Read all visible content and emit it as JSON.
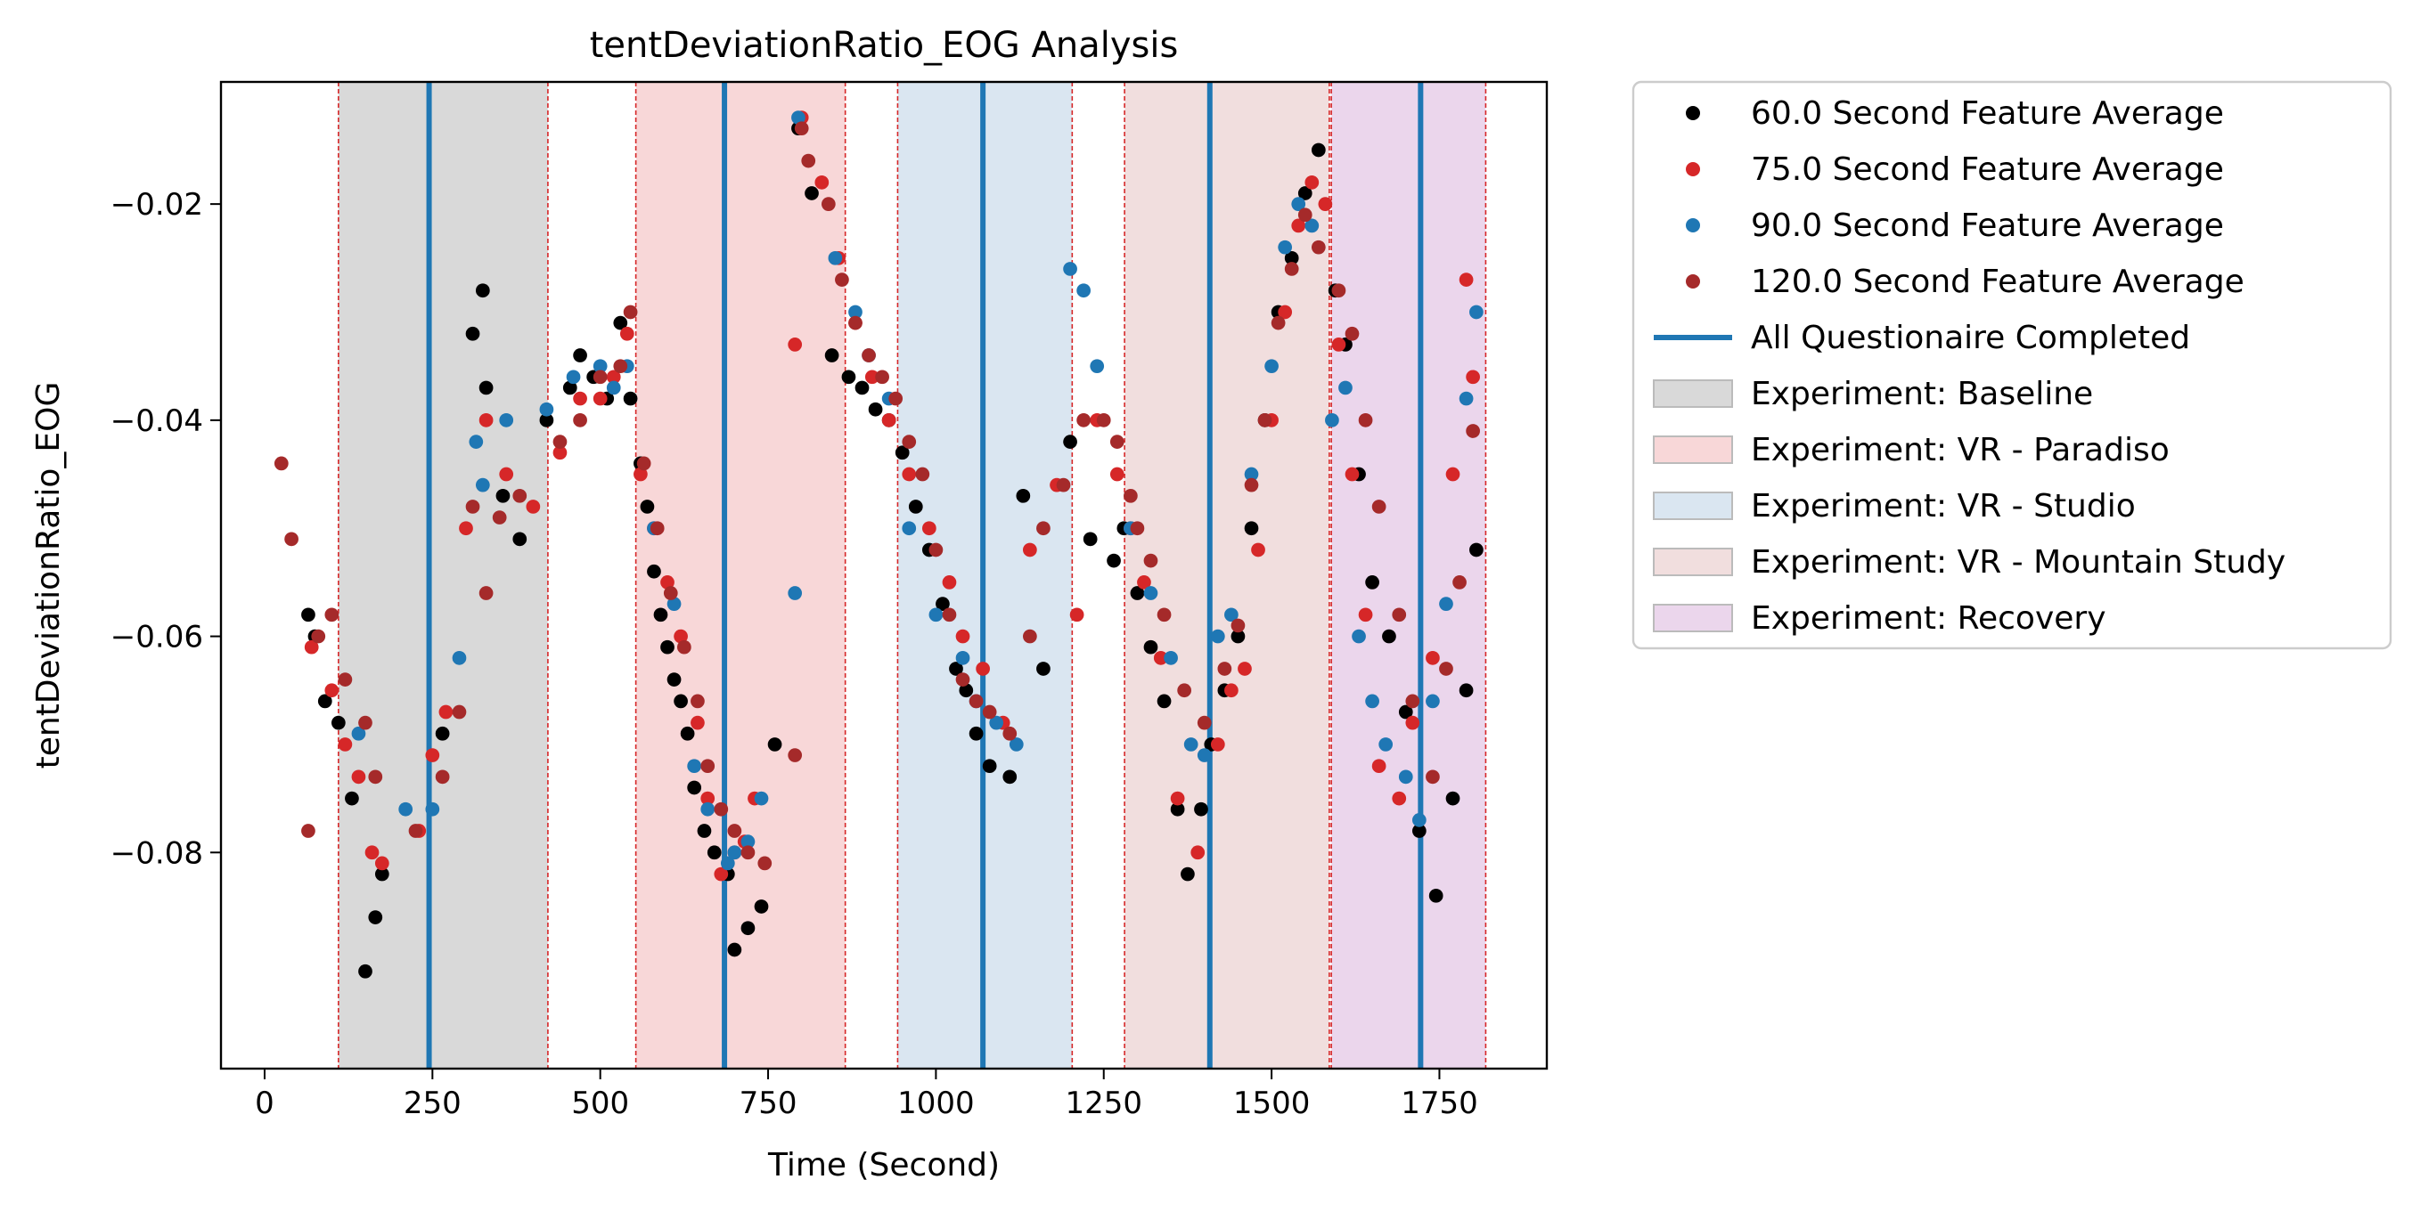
{
  "chart_data": {
    "type": "scatter",
    "title": "tentDeviationRatio_EOG Analysis",
    "xlabel": "Time (Second)",
    "ylabel": "tentDeviationRatio_EOG",
    "xlim": [
      -65,
      1910
    ],
    "ylim": [
      -0.1,
      -0.0087
    ],
    "x_ticks": [
      0,
      250,
      500,
      750,
      1000,
      1250,
      1500,
      1750
    ],
    "x_tick_labels": [
      "0",
      "250",
      "500",
      "750",
      "1000",
      "1250",
      "1500",
      "1750"
    ],
    "y_ticks": [
      -0.08,
      -0.06,
      -0.04,
      -0.02
    ],
    "y_tick_labels": [
      "−0.08",
      "−0.06",
      "−0.04",
      "−0.02"
    ],
    "grid": false,
    "legend_position": "outside-right-top",
    "series": [
      {
        "name": "60.0 Second Feature Average",
        "color": "#000000",
        "x": [
          65,
          75,
          90,
          110,
          130,
          150,
          165,
          175,
          265,
          310,
          325,
          330,
          355,
          380,
          420,
          455,
          470,
          490,
          510,
          530,
          545,
          560,
          570,
          580,
          590,
          600,
          610,
          620,
          630,
          640,
          655,
          670,
          690,
          700,
          720,
          740,
          760,
          795,
          815,
          845,
          870,
          890,
          910,
          930,
          950,
          970,
          990,
          1010,
          1030,
          1045,
          1060,
          1080,
          1110,
          1130,
          1160,
          1200,
          1230,
          1265,
          1280,
          1300,
          1320,
          1340,
          1360,
          1375,
          1395,
          1410,
          1430,
          1450,
          1470,
          1490,
          1510,
          1530,
          1550,
          1570,
          1595,
          1610,
          1630,
          1650,
          1675,
          1700,
          1720,
          1745,
          1770,
          1790,
          1805
        ],
        "y": [
          -0.058,
          -0.06,
          -0.066,
          -0.068,
          -0.075,
          -0.091,
          -0.086,
          -0.082,
          -0.069,
          -0.032,
          -0.028,
          -0.037,
          -0.047,
          -0.051,
          -0.04,
          -0.037,
          -0.034,
          -0.036,
          -0.038,
          -0.031,
          -0.038,
          -0.044,
          -0.048,
          -0.054,
          -0.058,
          -0.061,
          -0.064,
          -0.066,
          -0.069,
          -0.074,
          -0.078,
          -0.08,
          -0.082,
          -0.089,
          -0.087,
          -0.085,
          -0.07,
          -0.013,
          -0.019,
          -0.034,
          -0.036,
          -0.037,
          -0.039,
          -0.04,
          -0.043,
          -0.048,
          -0.052,
          -0.057,
          -0.063,
          -0.065,
          -0.069,
          -0.072,
          -0.073,
          -0.047,
          -0.063,
          -0.042,
          -0.051,
          -0.053,
          -0.05,
          -0.056,
          -0.061,
          -0.066,
          -0.076,
          -0.082,
          -0.076,
          -0.07,
          -0.065,
          -0.06,
          -0.05,
          -0.04,
          -0.03,
          -0.025,
          -0.019,
          -0.015,
          -0.028,
          -0.033,
          -0.045,
          -0.055,
          -0.06,
          -0.067,
          -0.078,
          -0.084,
          -0.075,
          -0.065,
          -0.052
        ],
        "size": 11
      },
      {
        "name": "75.0 Second Feature Average",
        "color": "#d62728",
        "x": [
          70,
          100,
          120,
          140,
          160,
          175,
          230,
          250,
          270,
          300,
          330,
          360,
          400,
          440,
          470,
          500,
          520,
          540,
          560,
          580,
          600,
          620,
          645,
          660,
          680,
          700,
          715,
          730,
          790,
          800,
          830,
          855,
          880,
          905,
          930,
          960,
          990,
          1020,
          1040,
          1070,
          1100,
          1140,
          1180,
          1210,
          1240,
          1270,
          1290,
          1310,
          1335,
          1360,
          1390,
          1420,
          1440,
          1460,
          1480,
          1500,
          1520,
          1540,
          1560,
          1580,
          1600,
          1620,
          1640,
          1660,
          1690,
          1710,
          1740,
          1770,
          1790,
          1800
        ],
        "y": [
          -0.061,
          -0.065,
          -0.07,
          -0.073,
          -0.08,
          -0.081,
          -0.078,
          -0.071,
          -0.067,
          -0.05,
          -0.04,
          -0.045,
          -0.048,
          -0.043,
          -0.038,
          -0.038,
          -0.036,
          -0.032,
          -0.045,
          -0.05,
          -0.055,
          -0.06,
          -0.068,
          -0.075,
          -0.082,
          -0.08,
          -0.079,
          -0.075,
          -0.033,
          -0.012,
          -0.018,
          -0.025,
          -0.031,
          -0.036,
          -0.04,
          -0.045,
          -0.05,
          -0.055,
          -0.06,
          -0.063,
          -0.068,
          -0.052,
          -0.046,
          -0.058,
          -0.04,
          -0.045,
          -0.05,
          -0.055,
          -0.062,
          -0.075,
          -0.08,
          -0.07,
          -0.065,
          -0.063,
          -0.052,
          -0.04,
          -0.03,
          -0.022,
          -0.018,
          -0.02,
          -0.033,
          -0.045,
          -0.058,
          -0.072,
          -0.075,
          -0.068,
          -0.062,
          -0.045,
          -0.027,
          -0.036
        ],
        "size": 11
      },
      {
        "name": "90.0 Second Feature Average",
        "color": "#1f77b4",
        "x": [
          140,
          210,
          250,
          290,
          315,
          325,
          360,
          420,
          460,
          500,
          520,
          540,
          580,
          610,
          640,
          660,
          690,
          700,
          720,
          740,
          790,
          795,
          850,
          880,
          900,
          930,
          960,
          1000,
          1040,
          1060,
          1090,
          1120,
          1200,
          1220,
          1240,
          1290,
          1320,
          1350,
          1380,
          1400,
          1420,
          1440,
          1470,
          1500,
          1520,
          1540,
          1560,
          1590,
          1610,
          1630,
          1650,
          1670,
          1700,
          1720,
          1740,
          1760,
          1790,
          1805
        ],
        "y": [
          -0.069,
          -0.076,
          -0.076,
          -0.062,
          -0.042,
          -0.046,
          -0.04,
          -0.039,
          -0.036,
          -0.035,
          -0.037,
          -0.035,
          -0.05,
          -0.057,
          -0.072,
          -0.076,
          -0.081,
          -0.08,
          -0.079,
          -0.075,
          -0.056,
          -0.012,
          -0.025,
          -0.03,
          -0.034,
          -0.038,
          -0.05,
          -0.058,
          -0.062,
          -0.066,
          -0.068,
          -0.07,
          -0.026,
          -0.028,
          -0.035,
          -0.05,
          -0.056,
          -0.062,
          -0.07,
          -0.071,
          -0.06,
          -0.058,
          -0.045,
          -0.035,
          -0.024,
          -0.02,
          -0.022,
          -0.04,
          -0.037,
          -0.06,
          -0.066,
          -0.07,
          -0.073,
          -0.077,
          -0.066,
          -0.057,
          -0.038,
          -0.03
        ],
        "size": 11
      },
      {
        "name": "120.0 Second Feature Average",
        "color": "#a52a2a",
        "x": [
          25,
          40,
          65,
          80,
          100,
          120,
          150,
          165,
          225,
          265,
          290,
          310,
          330,
          350,
          380,
          440,
          470,
          500,
          530,
          545,
          565,
          585,
          605,
          625,
          645,
          660,
          680,
          700,
          720,
          745,
          790,
          800,
          810,
          840,
          860,
          880,
          900,
          920,
          940,
          960,
          980,
          1000,
          1020,
          1040,
          1060,
          1080,
          1110,
          1140,
          1160,
          1190,
          1220,
          1250,
          1270,
          1290,
          1300,
          1320,
          1340,
          1370,
          1400,
          1430,
          1450,
          1470,
          1490,
          1510,
          1530,
          1550,
          1570,
          1600,
          1620,
          1640,
          1660,
          1690,
          1710,
          1740,
          1760,
          1780,
          1800
        ],
        "y": [
          -0.044,
          -0.051,
          -0.078,
          -0.06,
          -0.058,
          -0.064,
          -0.068,
          -0.073,
          -0.078,
          -0.073,
          -0.067,
          -0.048,
          -0.056,
          -0.049,
          -0.047,
          -0.042,
          -0.04,
          -0.036,
          -0.035,
          -0.03,
          -0.044,
          -0.05,
          -0.056,
          -0.061,
          -0.066,
          -0.072,
          -0.076,
          -0.078,
          -0.08,
          -0.081,
          -0.071,
          -0.013,
          -0.016,
          -0.02,
          -0.027,
          -0.031,
          -0.034,
          -0.036,
          -0.038,
          -0.042,
          -0.045,
          -0.052,
          -0.058,
          -0.064,
          -0.066,
          -0.067,
          -0.069,
          -0.06,
          -0.05,
          -0.046,
          -0.04,
          -0.04,
          -0.042,
          -0.047,
          -0.05,
          -0.053,
          -0.058,
          -0.065,
          -0.068,
          -0.063,
          -0.059,
          -0.046,
          -0.04,
          -0.031,
          -0.026,
          -0.021,
          -0.024,
          -0.028,
          -0.032,
          -0.04,
          -0.048,
          -0.058,
          -0.066,
          -0.073,
          -0.063,
          -0.055,
          -0.041
        ],
        "size": 11
      }
    ],
    "questionnaire_lines": {
      "name": "All Questionaire Completed",
      "color": "#1f77b4",
      "x": [
        245,
        685,
        1070,
        1408,
        1722
      ]
    },
    "phases": [
      {
        "name": "Experiment: Baseline",
        "color": "#d9d9d9",
        "start": 110,
        "end": 422
      },
      {
        "name": "Experiment: VR - Paradiso",
        "color": "#f8d7d8",
        "start": 553,
        "end": 865
      },
      {
        "name": "Experiment: VR - Studio",
        "color": "#dae6f1",
        "start": 943,
        "end": 1203
      },
      {
        "name": "Experiment: VR - Mountain Study",
        "color": "#f1dede",
        "start": 1281,
        "end": 1586
      },
      {
        "name": "Experiment: Recovery",
        "color": "#ebd6ec",
        "start": 1589,
        "end": 1819
      }
    ],
    "phase_boundary_color": "#d62728"
  }
}
